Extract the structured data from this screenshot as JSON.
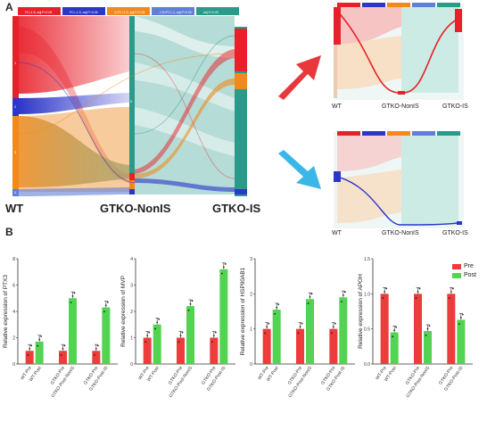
{
  "panel_a": {
    "letter": "A",
    "main_legend": [
      {
        "label": "FC>1.5, adj.P<0.05",
        "color": "#e8202a"
      },
      {
        "label": "FC<-1.5, adj.P<0.05",
        "color": "#2c36c9"
      },
      {
        "label": "1<FC<1.5, adj.P<0.05",
        "color": "#f08a1c"
      },
      {
        "label": "-1.5<FC<-1, adj.P<0.05",
        "color": "#5f7fd8"
      },
      {
        "label": "adj.P>0.05",
        "color": "#2a9a8a"
      }
    ],
    "node_labels": [
      "WT",
      "GTKO-NonIS",
      "GTKO-IS"
    ],
    "node_box_labels": [
      "1",
      "2",
      "3",
      "4",
      "5"
    ],
    "small_top_labels": [
      "WT",
      "GTKO-NonIS",
      "GTKO-IS"
    ],
    "small_bottom_labels": [
      "WT",
      "GTKO-NonIS",
      "GTKO-IS"
    ],
    "arrow_up_color": "#e8383c",
    "arrow_down_color": "#3ab7e8"
  },
  "panel_b": {
    "letter": "B",
    "legend": [
      {
        "label": "Pre",
        "color": "#ee3b3b"
      },
      {
        "label": "Post",
        "color": "#52d352"
      }
    ]
  },
  "chart_data": [
    {
      "type": "bar",
      "ylabel": "Relative expression of PTX3",
      "ylim": [
        0,
        8
      ],
      "yticks": [
        0,
        2,
        4,
        6,
        8
      ],
      "categories": [
        "WT-Pre",
        "WT-Post",
        "GTKO-Pre",
        "GTKO-Post-NonIS",
        "GTKO-Pre",
        "GTKO-Post-IS"
      ],
      "values": [
        1.0,
        1.7,
        1.0,
        5.0,
        1.0,
        4.3
      ],
      "colors": [
        "#ee3b3b",
        "#52d352",
        "#ee3b3b",
        "#52d352",
        "#ee3b3b",
        "#52d352"
      ]
    },
    {
      "type": "bar",
      "ylabel": "Relative expression of MVP",
      "ylim": [
        0,
        4
      ],
      "yticks": [
        0,
        1,
        2,
        3,
        4
      ],
      "categories": [
        "WT-Pre",
        "WT-Post",
        "GTKO-Pre",
        "GTKO-Post-NonIS",
        "GTKO-Pre",
        "GTKO-Post-IS"
      ],
      "values": [
        1.0,
        1.5,
        1.0,
        2.2,
        1.0,
        3.6
      ],
      "colors": [
        "#ee3b3b",
        "#52d352",
        "#ee3b3b",
        "#52d352",
        "#ee3b3b",
        "#52d352"
      ]
    },
    {
      "type": "bar",
      "ylabel": "Relative expression of HSP90AB1",
      "ylim": [
        0,
        3
      ],
      "yticks": [
        0,
        1,
        2,
        3
      ],
      "categories": [
        "WT-Pre",
        "WT-Post",
        "GTKO-Pre",
        "GTKO-Post-NonIS",
        "GTKO-Pre",
        "GTKO-Post-IS"
      ],
      "values": [
        1.0,
        1.55,
        1.0,
        1.85,
        1.0,
        1.9
      ],
      "colors": [
        "#ee3b3b",
        "#52d352",
        "#ee3b3b",
        "#52d352",
        "#ee3b3b",
        "#52d352"
      ]
    },
    {
      "type": "bar",
      "ylabel": "Relative expression of APOH",
      "ylim": [
        0,
        1.5
      ],
      "yticks": [
        0.0,
        0.5,
        1.0,
        1.5
      ],
      "categories": [
        "WT-Pre",
        "WT-Post",
        "GTKO-Pre",
        "GTKO-Post-NonIS",
        "GTKO-Pre",
        "GTKO-Post-IS"
      ],
      "values": [
        1.0,
        0.45,
        1.0,
        0.47,
        1.0,
        0.63
      ],
      "colors": [
        "#ee3b3b",
        "#52d352",
        "#ee3b3b",
        "#52d352",
        "#ee3b3b",
        "#52d352"
      ]
    }
  ]
}
